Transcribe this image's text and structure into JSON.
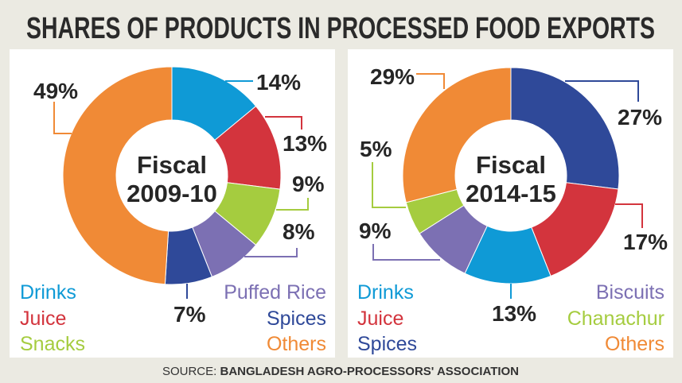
{
  "title": "SHARES OF PRODUCTS IN PROCESSED FOOD EXPORTS",
  "source": {
    "prefix": "SOURCE: ",
    "name": "BANGLADESH AGRO-PROCESSORS' ASSOCIATION"
  },
  "colors": {
    "Drinks": "#0f9ad6",
    "Juice": "#d3343d",
    "Snacks": "#a5cc3f",
    "Chanachur": "#a5cc3f",
    "Puffed Rice": "#7c70b3",
    "Biscuits": "#7c70b3",
    "Spices": "#2f4999",
    "Others": "#f08a36"
  },
  "chart_data": [
    {
      "type": "pie",
      "donut": true,
      "center_label": [
        "Fiscal",
        "2009-10"
      ],
      "categories": [
        "Drinks",
        "Juice",
        "Snacks",
        "Puffed Rice",
        "Spices",
        "Others"
      ],
      "values": [
        14,
        13,
        9,
        8,
        7,
        49
      ],
      "data_labels": [
        "14%",
        "13%",
        "9%",
        "8%",
        "7%",
        "49%"
      ],
      "legend_left": [
        "Drinks",
        "Juice",
        "Snacks"
      ],
      "legend_right": [
        "Puffed Rice",
        "Spices",
        "Others"
      ]
    },
    {
      "type": "pie",
      "donut": true,
      "center_label": [
        "Fiscal",
        "2014-15"
      ],
      "categories": [
        "Spices",
        "Juice",
        "Drinks",
        "Biscuits",
        "Chanachur",
        "Others"
      ],
      "values": [
        27,
        17,
        13,
        9,
        5,
        29
      ],
      "data_labels": [
        "27%",
        "17%",
        "13%",
        "9%",
        "5%",
        "29%"
      ],
      "legend_left": [
        "Drinks",
        "Juice",
        "Spices"
      ],
      "legend_right": [
        "Biscuits",
        "Chanachur",
        "Others"
      ]
    }
  ]
}
